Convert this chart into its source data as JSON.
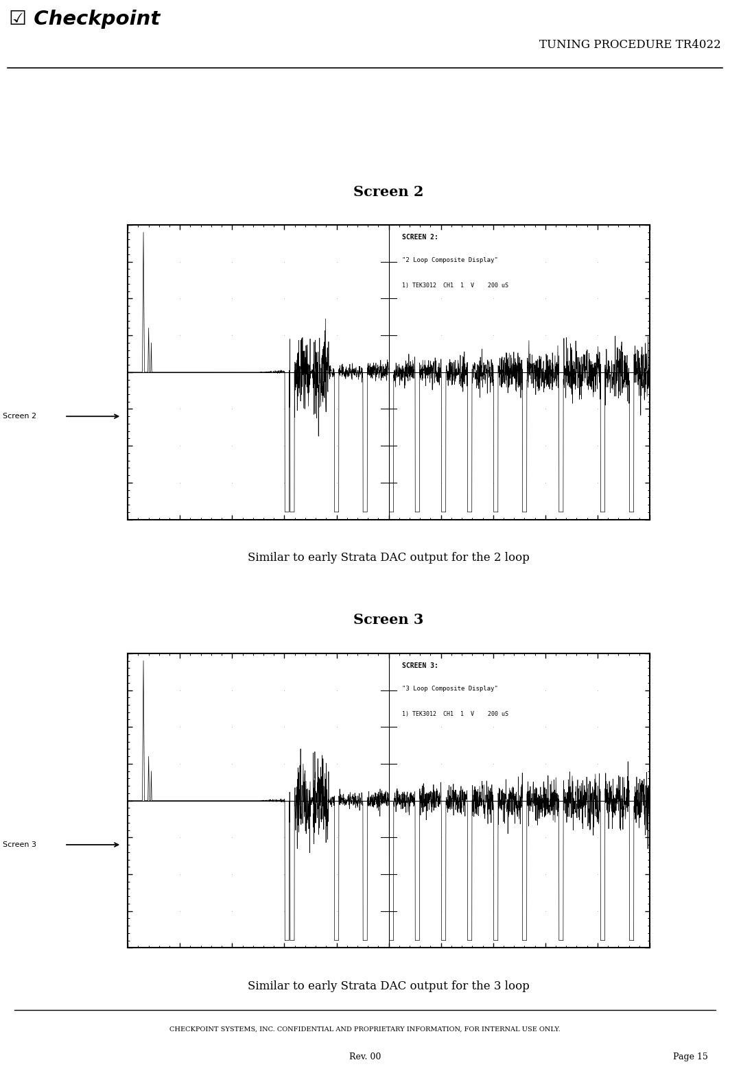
{
  "title": "TUNING PROCEDURE TR4022",
  "screen2_title": "Screen 2",
  "screen3_title": "Screen 3",
  "screen2_caption": "Similar to early Strata DAC output for the 2 loop",
  "screen3_caption": "Similar to early Strata DAC output for the 3 loop",
  "screen2_label": "Screen 2",
  "screen3_label": "Screen 3",
  "screen2_annotation1": "SCREEN 2:",
  "screen2_annotation2": "\"2 Loop Composite Display\"",
  "screen2_annotation3": "1) TEK3012  CH1  1  V    200 uS",
  "screen3_annotation1": "SCREEN 3:",
  "screen3_annotation2": "\"3 Loop Composite Display\"",
  "screen3_annotation3": "1) TEK3012  CH1  1  V    200 uS",
  "footer_line1": "CHECKPOINT SYSTEMS, INC. CONFIDENTIAL AND PROPRIETARY INFORMATION, FOR INTERNAL USE ONLY.",
  "footer_line2": "Rev. 00",
  "footer_line3": "Page 15",
  "bg_color": "#ffffff",
  "screen_bg": "#ffffff",
  "text_color": "#000000"
}
